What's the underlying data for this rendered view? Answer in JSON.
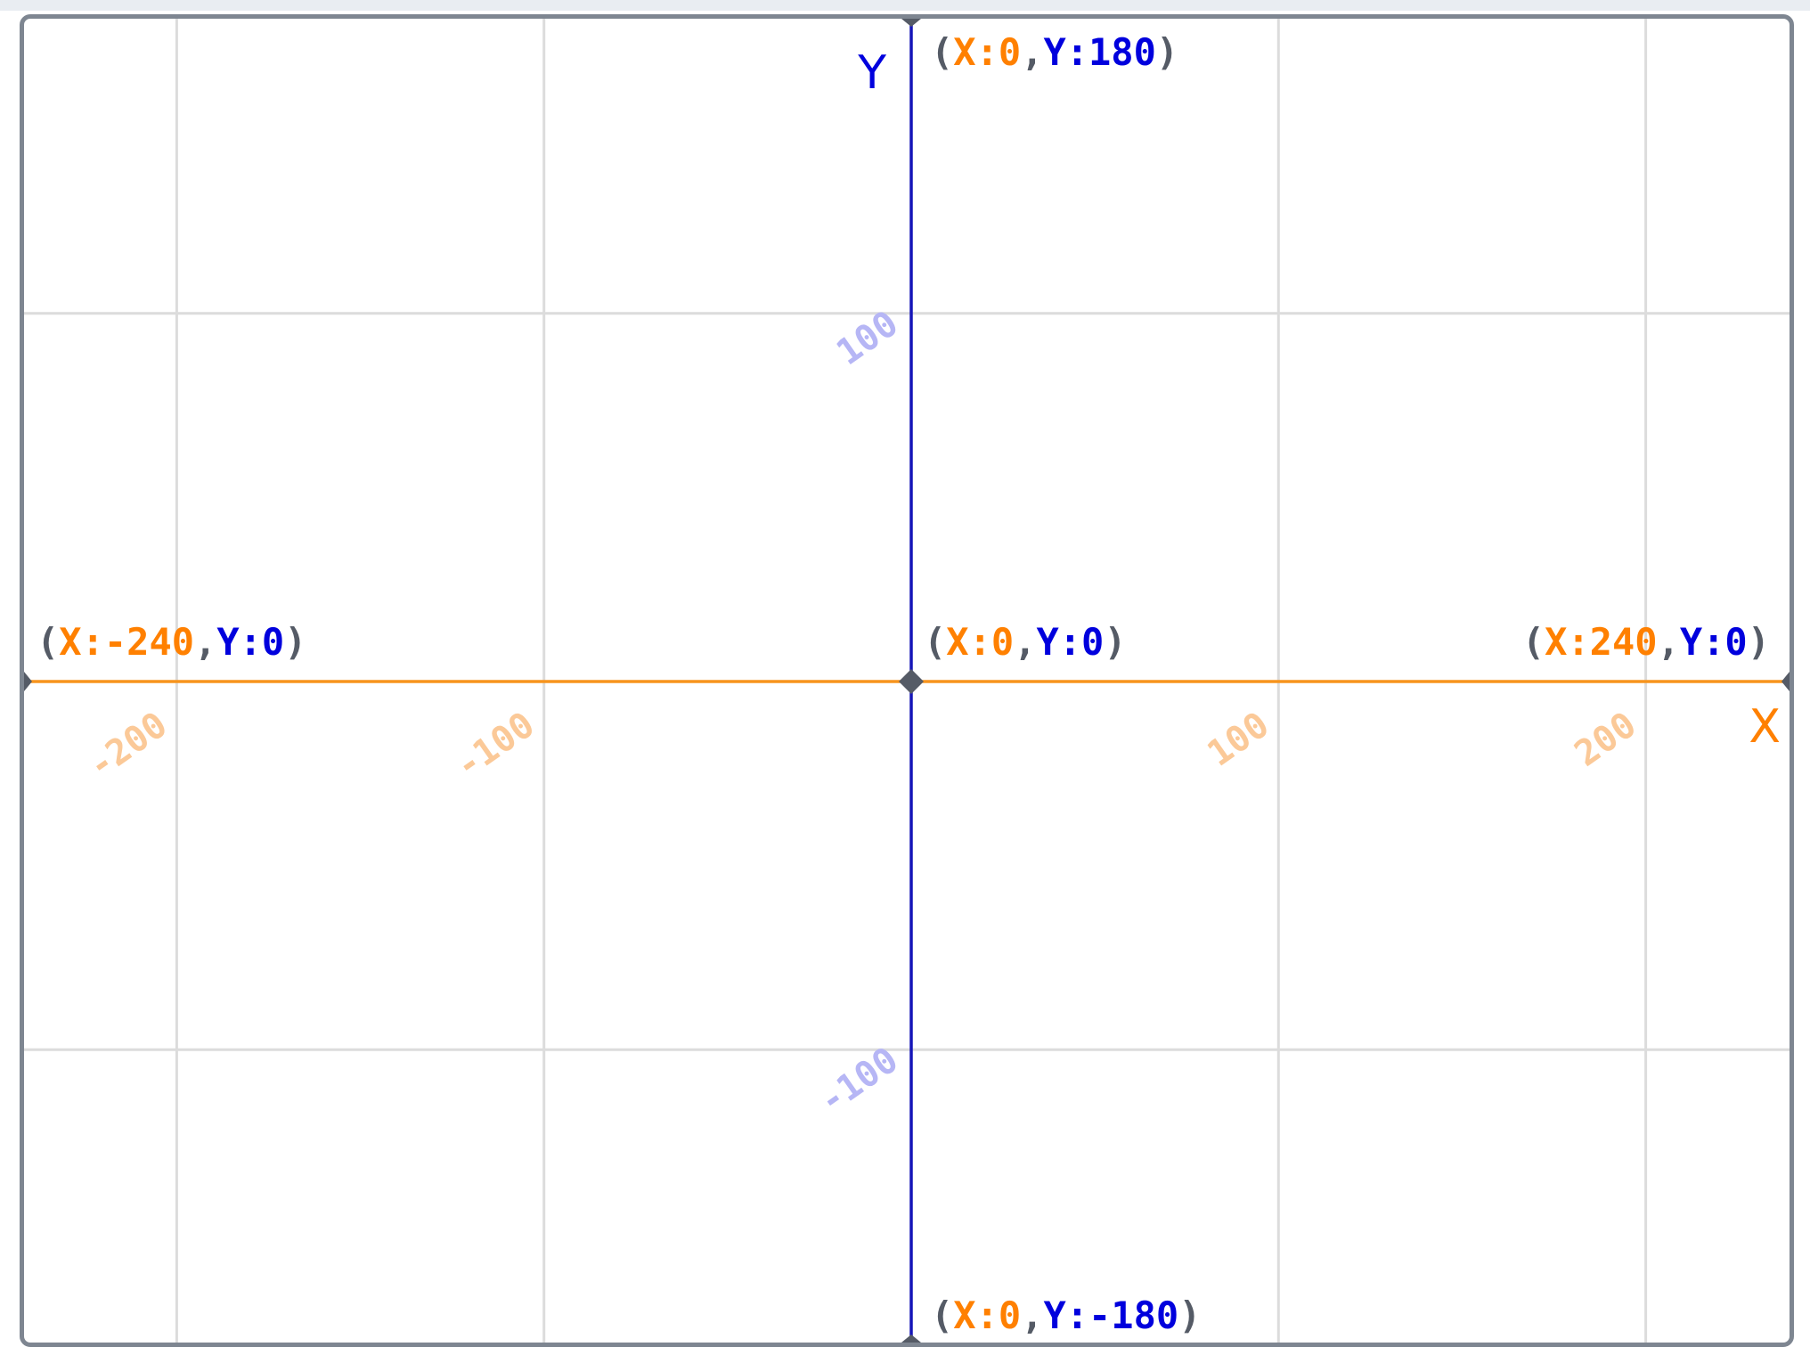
{
  "colors": {
    "x_accent": "#ff8000",
    "y_accent": "#0000dd",
    "bracket": "#555b66",
    "grid": "#dcdcdc",
    "x_axis_line": "#f7941d",
    "y_axis_line": "#1616b8",
    "x_tick_label": "#fbc998",
    "y_tick_label": "#b6b6f5",
    "frame_border": "#7e8691"
  },
  "axis_names": {
    "x": "X",
    "y": "Y"
  },
  "stage": {
    "x_range": [
      -240,
      240
    ],
    "y_range": [
      -180,
      180
    ],
    "grid_x": [
      -200,
      -100,
      0,
      100,
      200
    ],
    "grid_y": [
      -100,
      100
    ]
  },
  "x_tick_labels": [
    {
      "value": -200,
      "text": "-200"
    },
    {
      "value": -100,
      "text": "-100"
    },
    {
      "value": 100,
      "text": "100"
    },
    {
      "value": 200,
      "text": "200"
    }
  ],
  "y_tick_labels": [
    {
      "value": 100,
      "text": "100"
    },
    {
      "value": -100,
      "text": "-100"
    }
  ],
  "coordinate_labels": [
    {
      "id": "top",
      "open": "(",
      "x_part": "X:0",
      "sep": ",",
      "y_part": "Y:180",
      "close": ")"
    },
    {
      "id": "left",
      "open": "(",
      "x_part": "X:-240",
      "sep": ",",
      "y_part": "Y:0",
      "close": ")"
    },
    {
      "id": "center",
      "open": "(",
      "x_part": "X:0",
      "sep": ",",
      "y_part": "Y:0",
      "close": ")"
    },
    {
      "id": "right",
      "open": "(",
      "x_part": "X:240",
      "sep": ",",
      "y_part": "Y:0",
      "close": ")"
    },
    {
      "id": "bottom",
      "open": "(",
      "x_part": "X:0",
      "sep": ",",
      "y_part": "Y:-180",
      "close": ")"
    }
  ]
}
